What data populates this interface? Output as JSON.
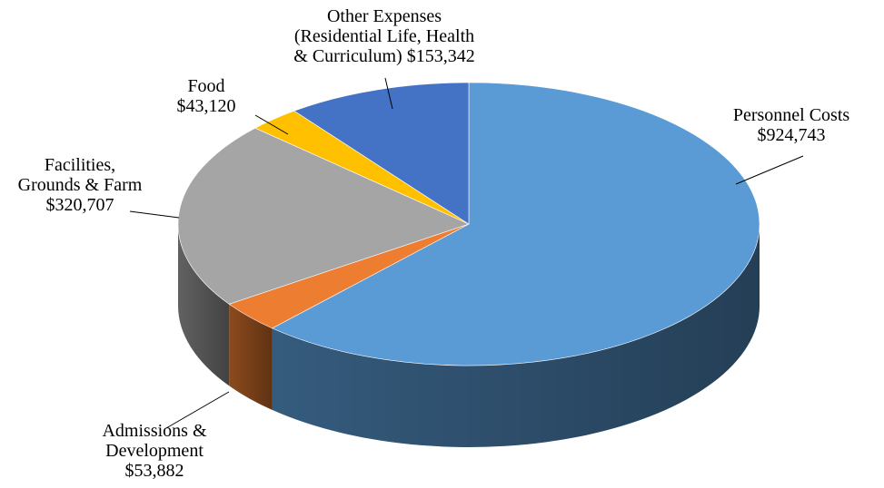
{
  "chart_data": {
    "type": "pie",
    "style": "3d",
    "colors": {
      "Personnel Costs": "#5b9bd5",
      "Admissions & Development": "#ed7d31",
      "Facilities, Grounds & Farm": "#a5a5a5",
      "Food": "#ffc000",
      "Other Expenses (Residential Life, Health & Curriculum)": "#4472c4"
    },
    "slices": [
      {
        "name": "Personnel Costs",
        "value": 924743,
        "label_lines": [
          "Personnel Costs",
          "$924,743"
        ]
      },
      {
        "name": "Admissions & Development",
        "value": 53882,
        "label_lines": [
          "Admissions &",
          "Development",
          "$53,882"
        ]
      },
      {
        "name": "Facilities, Grounds & Farm",
        "value": 320707,
        "label_lines": [
          "Facilities,",
          "Grounds & Farm",
          "$320,707"
        ]
      },
      {
        "name": "Food",
        "value": 43120,
        "label_lines": [
          "Food",
          "$43,120"
        ]
      },
      {
        "name": "Other Expenses (Residential Life, Health & Curriculum)",
        "value": 153342,
        "label_lines": [
          "Other Expenses",
          "(Residential Life, Health",
          "& Curriculum) $153,342"
        ]
      }
    ]
  }
}
